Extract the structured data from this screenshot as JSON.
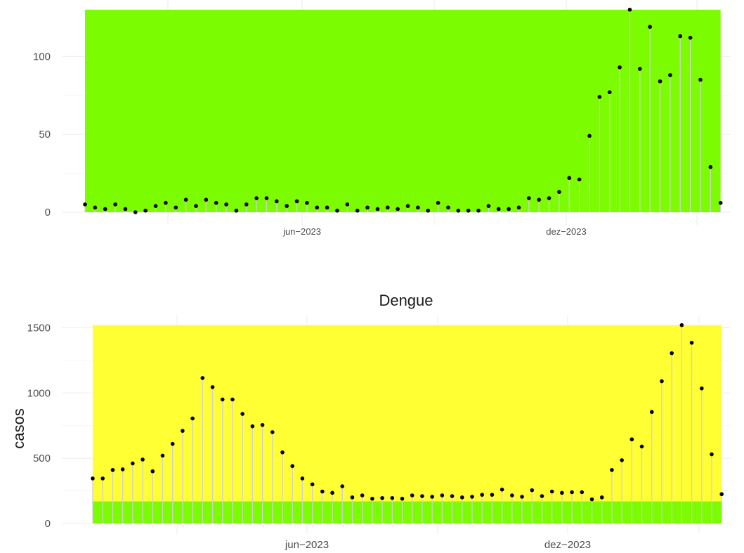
{
  "chart_data": [
    {
      "type": "lollipop",
      "title": "",
      "xlabel": "",
      "ylabel": "",
      "ylim": [
        0,
        130
      ],
      "yticks": [
        0,
        50,
        100
      ],
      "ytick_labels": [
        "0",
        "50",
        "100"
      ],
      "xtick_labels": [
        "jun−2023",
        "dez−2023"
      ],
      "grid": true,
      "background_bands": [
        {
          "from": 0,
          "to": 130,
          "color": "#7cfc00"
        }
      ],
      "stem_color": "#d0d0d0",
      "point_color": "#000000",
      "values": [
        5,
        3,
        2,
        5,
        2,
        0,
        1,
        4,
        6,
        3,
        8,
        4,
        8,
        6,
        5,
        1,
        5,
        9,
        9,
        7,
        4,
        7,
        6,
        3,
        3,
        1,
        5,
        1,
        3,
        2,
        3,
        2,
        4,
        3,
        1,
        6,
        3,
        1,
        1,
        1,
        4,
        2,
        2,
        3,
        9,
        8,
        9,
        13,
        22,
        21,
        49,
        74,
        77,
        93,
        130,
        92,
        119,
        84,
        88,
        113,
        112,
        85,
        29,
        6
      ]
    },
    {
      "type": "lollipop",
      "title": "Dengue",
      "xlabel": "",
      "ylabel": "casos",
      "ylim": [
        0,
        1520
      ],
      "yticks": [
        0,
        500,
        1000,
        1500
      ],
      "ytick_labels": [
        "0",
        "500",
        "1000",
        "1500"
      ],
      "xtick_labels": [
        "jun−2023",
        "dez−2023"
      ],
      "grid": true,
      "background_bands": [
        {
          "from": 0,
          "to": 170,
          "color": "#7cfc00"
        },
        {
          "from": 170,
          "to": 1520,
          "color": "#ffff33"
        }
      ],
      "stem_color": "#d0d0d0",
      "point_color": "#000000",
      "values": [
        345,
        345,
        410,
        415,
        460,
        490,
        400,
        520,
        610,
        710,
        805,
        1115,
        1045,
        950,
        950,
        840,
        745,
        755,
        700,
        545,
        440,
        345,
        300,
        245,
        235,
        285,
        200,
        215,
        190,
        195,
        195,
        190,
        215,
        210,
        205,
        215,
        210,
        200,
        205,
        220,
        220,
        260,
        215,
        205,
        255,
        210,
        245,
        235,
        240,
        240,
        185,
        200,
        410,
        485,
        645,
        590,
        855,
        1090,
        1305,
        1520,
        1385,
        1035,
        530,
        225
      ]
    }
  ]
}
